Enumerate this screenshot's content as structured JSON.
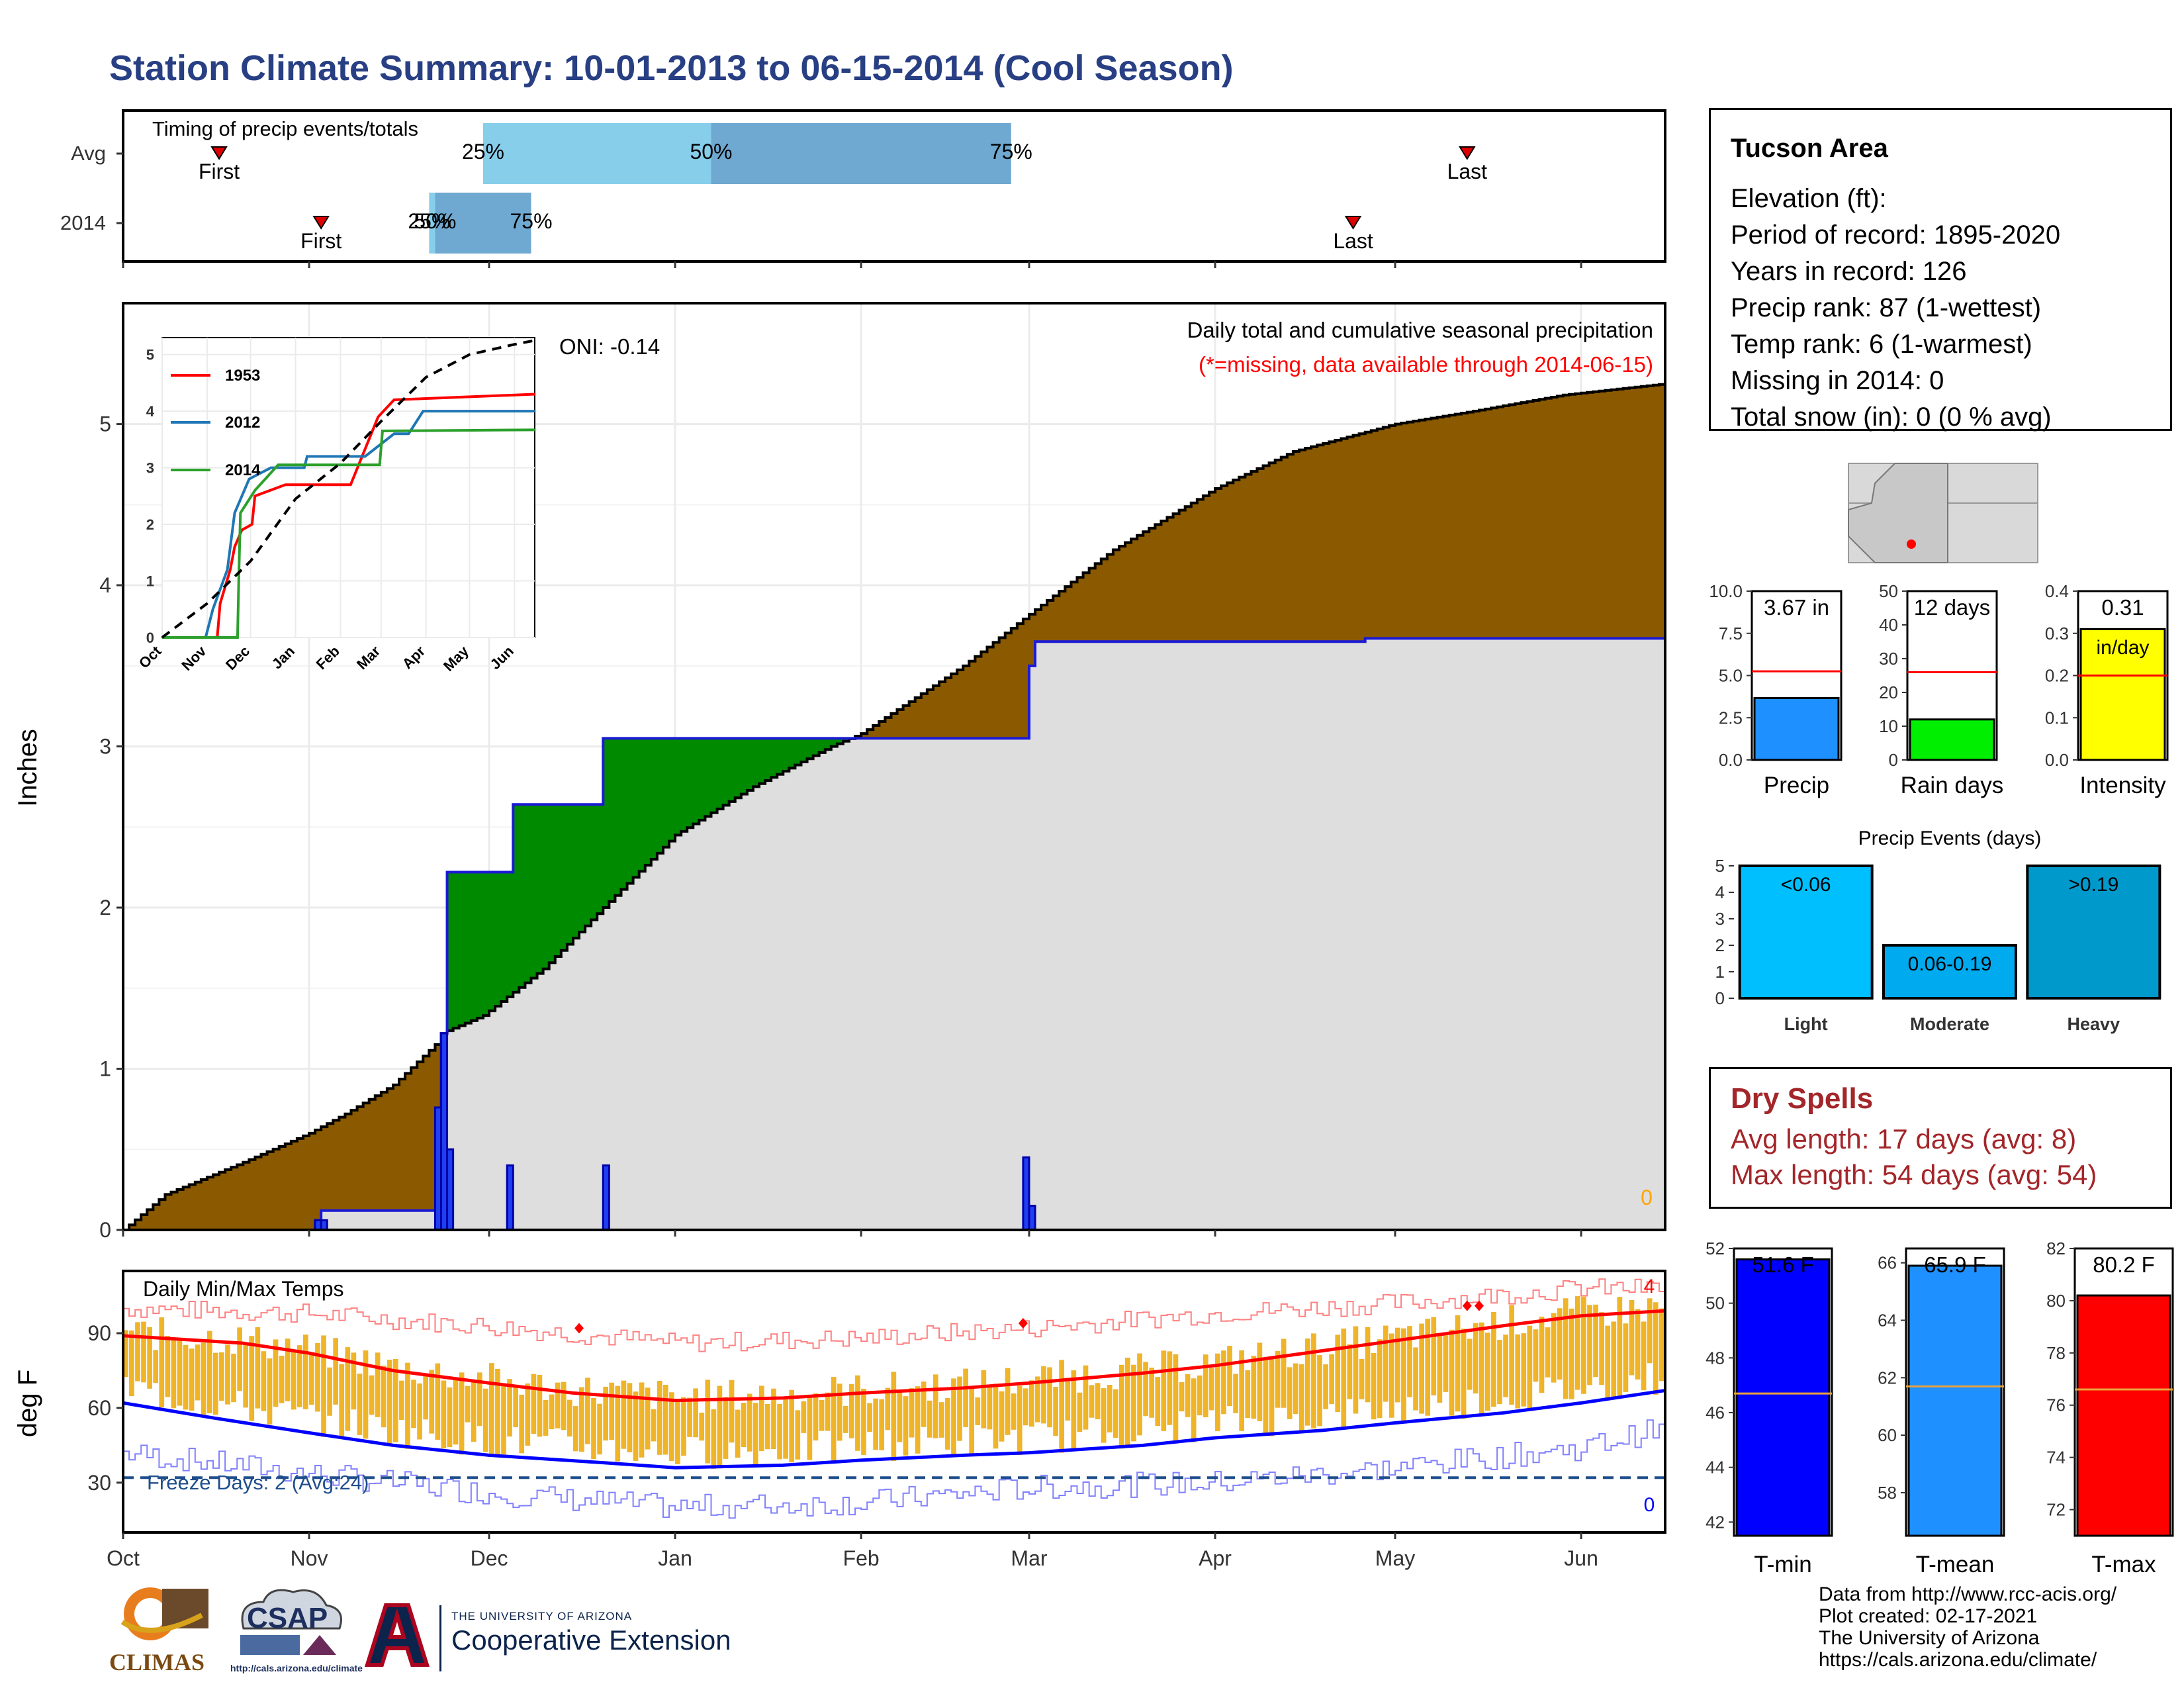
{
  "page_title": "Station Climate Summary: 10-01-2013 to 06-15-2014 (Cool Season)",
  "station": {
    "name": "Tucson Area",
    "elevation": "Elevation (ft):",
    "period": "Period of record: 1895-2020",
    "years": "Years in record: 126",
    "precip_rank": "Precip rank: 87 (1-wettest)",
    "temp_rank": "Temp rank: 6 (1-warmest)",
    "missing": "Missing in 2014: 0",
    "snow": "Total snow (in): 0 (0 % avg)"
  },
  "dry_spells": {
    "title": "Dry Spells",
    "avg": "Avg length: 17 days (avg: 8)",
    "max": "Max length: 54 days (avg: 54)"
  },
  "credits": {
    "line1": "Data from http://www.rcc-acis.org/",
    "line2": "Plot created: 02-17-2021",
    "line3": "The University of Arizona",
    "line4": "https://cals.arizona.edu/climate/"
  },
  "logos": {
    "climas": "CLIMAS",
    "csap": "CSAP",
    "csap_url": "http://cals.arizona.edu/climate",
    "ua_small": "THE UNIVERSITY OF ARIZONA",
    "ua_big": "Cooperative Extension"
  },
  "colors": {
    "title": "#283f84",
    "cumulative_fill": "#8b5a00",
    "surplus_fill": "#008a00",
    "daily_bars": "#1f3ff0",
    "tmax_line": "#ff0000",
    "tmin_line": "#0000ff",
    "range_bars": "#f0b429",
    "dry_text": "#a3262a"
  },
  "chart_data": [
    {
      "id": "timing",
      "type": "bar",
      "title": "Timing of precip events/totals",
      "categories": [
        "Avg",
        "2014"
      ],
      "x_range": [
        "10-01",
        "06-15"
      ],
      "series": [
        {
          "name": "Avg",
          "first": "10-17",
          "p25": "11-30",
          "p50": "01-07",
          "p75": "02-26",
          "last": "05-13"
        },
        {
          "name": "2014",
          "first": "11-03",
          "p25": "11-21",
          "p50": "11-22",
          "p75": "12-08",
          "last": "04-24"
        }
      ],
      "labels": {
        "first": "First",
        "last": "Last",
        "p25": "25%",
        "p50": "50%",
        "p75": "75%"
      }
    },
    {
      "id": "cumulative",
      "type": "area",
      "title": "Daily total and cumulative seasonal precipitation",
      "subtitle": "(*=missing, data available through 2014-06-15)",
      "ylabel": "Inches",
      "ylim": [
        0,
        5.75
      ],
      "yticks": [
        0,
        1,
        2,
        3,
        4,
        5
      ],
      "xticks": [
        "Oct",
        "Nov",
        "Dec",
        "Jan",
        "Feb",
        "Mar",
        "Apr",
        "May",
        "Jun"
      ],
      "xtick_days": [
        0,
        31,
        61,
        92,
        123,
        151,
        182,
        212,
        243
      ],
      "x_days_total": 257,
      "oni": "ONI: -0.14",
      "missing_count": "0",
      "avg_cumulative": [
        [
          0,
          0
        ],
        [
          7,
          0.22
        ],
        [
          20,
          0.42
        ],
        [
          31,
          0.6
        ],
        [
          37,
          0.72
        ],
        [
          45,
          0.9
        ],
        [
          52,
          1.15
        ],
        [
          53,
          1.22
        ],
        [
          60,
          1.33
        ],
        [
          70,
          1.62
        ],
        [
          80,
          2.0
        ],
        [
          92,
          2.45
        ],
        [
          105,
          2.75
        ],
        [
          118,
          3.0
        ],
        [
          123,
          3.08
        ],
        [
          140,
          3.5
        ],
        [
          151,
          3.82
        ],
        [
          165,
          4.22
        ],
        [
          182,
          4.6
        ],
        [
          195,
          4.83
        ],
        [
          212,
          5.0
        ],
        [
          225,
          5.08
        ],
        [
          240,
          5.18
        ],
        [
          257,
          5.25
        ]
      ],
      "obs_cumulative": [
        [
          0,
          0
        ],
        [
          31,
          0
        ],
        [
          32,
          0.06
        ],
        [
          33,
          0.12
        ],
        [
          52,
          0.12
        ],
        [
          52.5,
          0.88
        ],
        [
          53,
          1.22
        ],
        [
          53.5,
          2.22
        ],
        [
          64,
          2.22
        ],
        [
          65,
          2.64
        ],
        [
          79,
          2.64
        ],
        [
          80,
          3.05
        ],
        [
          117,
          3.05
        ],
        [
          118,
          3.05
        ],
        [
          150,
          3.05
        ],
        [
          151,
          3.5
        ],
        [
          152,
          3.65
        ],
        [
          206,
          3.65
        ],
        [
          207,
          3.67
        ],
        [
          257,
          3.67
        ]
      ],
      "daily": [
        [
          32,
          0.06
        ],
        [
          33,
          0.06
        ],
        [
          52,
          0.76
        ],
        [
          53,
          1.22
        ],
        [
          54,
          0.5
        ],
        [
          64,
          0.4
        ],
        [
          80,
          0.4
        ],
        [
          150,
          0.45
        ],
        [
          151,
          0.15
        ]
      ]
    },
    {
      "id": "oni_inset",
      "type": "line",
      "xticks": [
        "Oct",
        "Nov",
        "Dec",
        "Jan",
        "Feb",
        "Mar",
        "Apr",
        "May",
        "Jun"
      ],
      "yticks": [
        0,
        1,
        2,
        3,
        4,
        5
      ],
      "ylim": [
        0,
        5.3
      ],
      "series": [
        {
          "name": "1953",
          "color": "#ff0000",
          "points": [
            [
              0,
              0
            ],
            [
              38,
              0
            ],
            [
              40,
              0.6
            ],
            [
              47,
              1.2
            ],
            [
              50,
              1.6
            ],
            [
              55,
              1.9
            ],
            [
              62,
              2.0
            ],
            [
              64,
              2.5
            ],
            [
              85,
              2.7
            ],
            [
              130,
              2.7
            ],
            [
              149,
              3.9
            ],
            [
              160,
              4.2
            ],
            [
              257,
              4.3
            ]
          ]
        },
        {
          "name": "2012",
          "color": "#1f77b4",
          "points": [
            [
              0,
              0
            ],
            [
              30,
              0
            ],
            [
              35,
              0.5
            ],
            [
              45,
              1.2
            ],
            [
              50,
              2.2
            ],
            [
              60,
              2.8
            ],
            [
              75,
              3.0
            ],
            [
              98,
              3.0
            ],
            [
              100,
              3.2
            ],
            [
              140,
              3.2
            ],
            [
              160,
              3.6
            ],
            [
              170,
              3.6
            ],
            [
              180,
              4.0
            ],
            [
              257,
              4.0
            ]
          ]
        },
        {
          "name": "2014",
          "color": "#2ca02c",
          "points": [
            [
              0,
              0
            ],
            [
              52,
              0
            ],
            [
              53,
              1.2
            ],
            [
              54,
              2.2
            ],
            [
              64,
              2.6
            ],
            [
              80,
              3.05
            ],
            [
              150,
              3.05
            ],
            [
              152,
              3.65
            ],
            [
              257,
              3.67
            ]
          ]
        },
        {
          "name": "avg",
          "color": "#000000",
          "dashed": true,
          "points": [
            [
              0,
              0
            ],
            [
              31,
              0.6
            ],
            [
              61,
              1.35
            ],
            [
              92,
              2.45
            ],
            [
              123,
              3.08
            ],
            [
              151,
              3.82
            ],
            [
              182,
              4.6
            ],
            [
              212,
              5.0
            ],
            [
              243,
              5.18
            ],
            [
              257,
              5.25
            ]
          ]
        }
      ]
    },
    {
      "id": "temps",
      "type": "line",
      "title": "Daily Min/Max Temps",
      "ylabel": "deg F",
      "ylim": [
        10,
        115
      ],
      "yticks": [
        30,
        60,
        90
      ],
      "freeze_line": 32,
      "freeze_label": "Freeze Days: 2 (Avg:24)",
      "count_max": "4",
      "count_min": "0",
      "tmax_avg": [
        [
          0,
          89
        ],
        [
          20,
          86
        ],
        [
          31,
          82
        ],
        [
          45,
          75
        ],
        [
          61,
          70
        ],
        [
          75,
          66
        ],
        [
          92,
          63
        ],
        [
          110,
          64
        ],
        [
          123,
          66
        ],
        [
          140,
          68
        ],
        [
          151,
          70
        ],
        [
          170,
          74
        ],
        [
          182,
          77
        ],
        [
          200,
          83
        ],
        [
          212,
          87
        ],
        [
          230,
          93
        ],
        [
          243,
          97
        ],
        [
          257,
          99
        ]
      ],
      "tmin_avg": [
        [
          0,
          62
        ],
        [
          15,
          56
        ],
        [
          31,
          50
        ],
        [
          45,
          45
        ],
        [
          61,
          41
        ],
        [
          80,
          38
        ],
        [
          92,
          36
        ],
        [
          110,
          37
        ],
        [
          123,
          39
        ],
        [
          140,
          41
        ],
        [
          151,
          42
        ],
        [
          170,
          45
        ],
        [
          182,
          48
        ],
        [
          200,
          51
        ],
        [
          212,
          54
        ],
        [
          230,
          58
        ],
        [
          243,
          62
        ],
        [
          257,
          67
        ]
      ],
      "record_max": [
        [
          0,
          100
        ],
        [
          30,
          98
        ],
        [
          60,
          93
        ],
        [
          92,
          86
        ],
        [
          123,
          88
        ],
        [
          151,
          92
        ],
        [
          182,
          98
        ],
        [
          212,
          102
        ],
        [
          243,
          108
        ],
        [
          257,
          108
        ]
      ],
      "record_min": [
        [
          0,
          42
        ],
        [
          30,
          34
        ],
        [
          60,
          26
        ],
        [
          92,
          20
        ],
        [
          123,
          22
        ],
        [
          151,
          28
        ],
        [
          182,
          30
        ],
        [
          212,
          36
        ],
        [
          243,
          44
        ],
        [
          257,
          52
        ]
      ]
    },
    {
      "id": "precip_small",
      "type": "bar",
      "panels": [
        {
          "label": "Precip",
          "value": 3.67,
          "avg": 5.25,
          "ylim": [
            0,
            10
          ],
          "yticks": [
            0.0,
            2.5,
            5.0,
            7.5,
            10.0
          ],
          "value_text": "3.67 in",
          "color": "#1e90ff"
        },
        {
          "label": "Rain days",
          "value": 12,
          "avg": 26,
          "ylim": [
            0,
            50
          ],
          "yticks": [
            0,
            10,
            20,
            30,
            40,
            50
          ],
          "value_text": "12 days",
          "color": "#00ee00"
        },
        {
          "label": "Intensity",
          "value": 0.31,
          "avg": 0.2,
          "ylim": [
            0,
            0.4
          ],
          "yticks": [
            0.0,
            0.1,
            0.2,
            0.3,
            0.4
          ],
          "value_text": "0.31",
          "value_text2": "in/day",
          "color": "#ffff00"
        }
      ]
    },
    {
      "id": "precip_events",
      "type": "bar",
      "title": "Precip Events (days)",
      "categories": [
        "Light",
        "Moderate",
        "Heavy"
      ],
      "bar_labels": [
        "<0.06",
        "0.06-0.19",
        ">0.19"
      ],
      "values": [
        5,
        2,
        5
      ],
      "ylim": [
        0,
        5
      ],
      "yticks": [
        0,
        1,
        2,
        3,
        4,
        5
      ],
      "colors": [
        "#00bfff",
        "#00aaee",
        "#0099cc"
      ]
    },
    {
      "id": "temp_small",
      "type": "bar",
      "panels": [
        {
          "label": "T-min",
          "value": 51.6,
          "avg": 46.7,
          "ylim": [
            41.5,
            52
          ],
          "yticks": [
            42,
            44,
            46,
            48,
            50,
            52
          ],
          "value_text": "51.6 F",
          "color": "#0000ff"
        },
        {
          "label": "T-mean",
          "value": 65.9,
          "avg": 61.7,
          "ylim": [
            56.5,
            66.5
          ],
          "yticks": [
            58,
            60,
            62,
            64,
            66
          ],
          "value_text": "65.9 F",
          "color": "#1e90ff"
        },
        {
          "label": "T-max",
          "value": 80.2,
          "avg": 76.6,
          "ylim": [
            71,
            82
          ],
          "yticks": [
            72,
            74,
            76,
            78,
            80,
            82
          ],
          "value_text": "80.2 F",
          "color": "#ff0000"
        }
      ]
    }
  ]
}
